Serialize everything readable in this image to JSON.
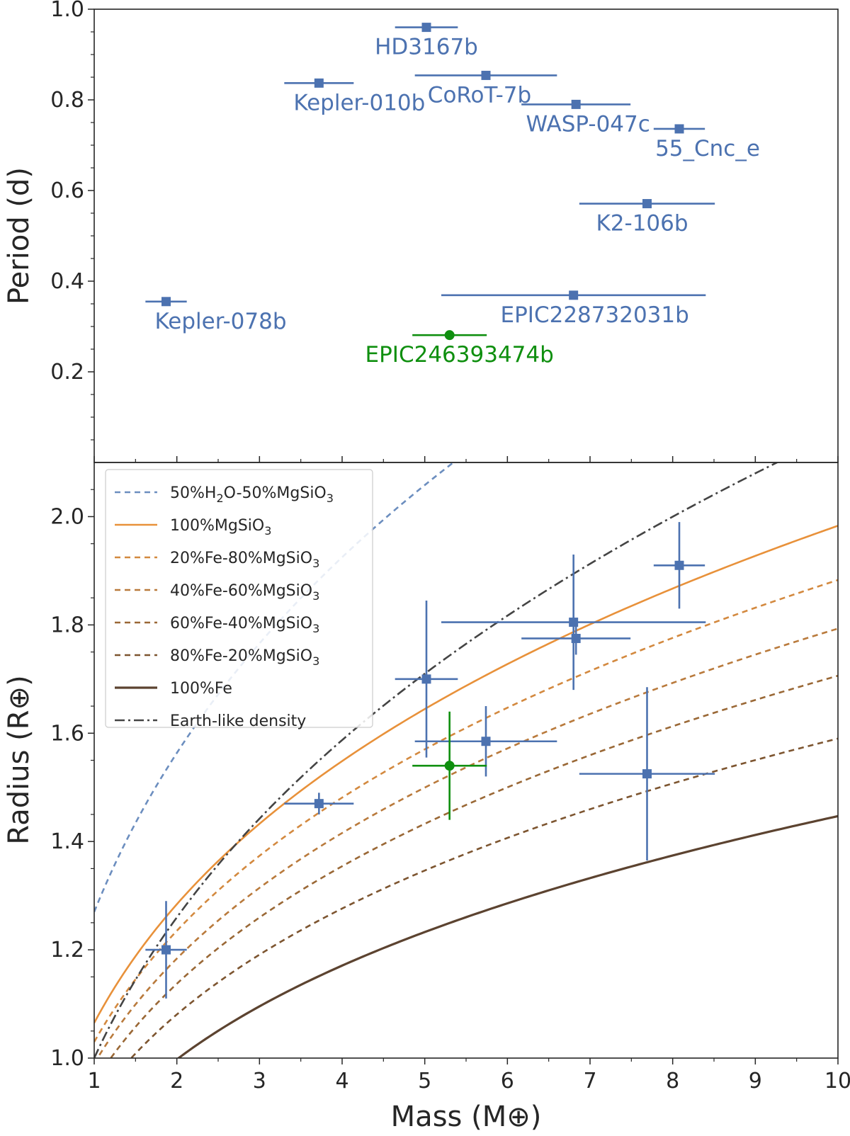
{
  "chart_data": [
    {
      "type": "scatter",
      "panel": "top",
      "ylabel": "Period (d)",
      "xlim": [
        1,
        10
      ],
      "ylim": [
        0,
        1.0
      ],
      "yticks": [
        0.2,
        0.4,
        0.6,
        0.8,
        1.0
      ],
      "ytick_labels": [
        "0.2",
        "0.4",
        "0.6",
        "0.8",
        "1.0"
      ],
      "points": [
        {
          "name": "HD3167b",
          "mass": 5.02,
          "mass_err": 0.38,
          "period": 0.96,
          "color": "#4c72b0",
          "marker": "square"
        },
        {
          "name": "Kepler-010b",
          "mass": 3.72,
          "mass_err": 0.42,
          "period": 0.837,
          "color": "#4c72b0",
          "marker": "square"
        },
        {
          "name": "CoRoT-7b",
          "mass": 5.74,
          "mass_err": 0.86,
          "period": 0.854,
          "color": "#4c72b0",
          "marker": "square"
        },
        {
          "name": "WASP-047c",
          "mass": 6.83,
          "mass_err": 0.66,
          "period": 0.79,
          "color": "#4c72b0",
          "marker": "square"
        },
        {
          "name": "55_Cnc_e",
          "mass": 8.08,
          "mass_err": 0.31,
          "period": 0.736,
          "color": "#4c72b0",
          "marker": "square"
        },
        {
          "name": "K2-106b",
          "mass": 7.69,
          "mass_err": 0.82,
          "period": 0.571,
          "color": "#4c72b0",
          "marker": "square"
        },
        {
          "name": "Kepler-078b",
          "mass": 1.87,
          "mass_err": 0.25,
          "period": 0.355,
          "color": "#4c72b0",
          "marker": "square"
        },
        {
          "name": "EPIC228732031b",
          "mass": 6.8,
          "mass_err": 1.6,
          "period": 0.369,
          "color": "#4c72b0",
          "marker": "square"
        },
        {
          "name": "EPIC246393474b",
          "mass": 5.3,
          "mass_err": 0.45,
          "period": 0.281,
          "color": "#0f8f0f",
          "marker": "circle"
        }
      ]
    },
    {
      "type": "line",
      "panel": "bottom",
      "xlabel": "Mass (M⊕)",
      "ylabel": "Radius (R⊕)",
      "xlim": [
        1,
        10
      ],
      "ylim": [
        1.0,
        2.1
      ],
      "xticks": [
        1,
        2,
        3,
        4,
        5,
        6,
        7,
        8,
        9,
        10
      ],
      "xtick_labels": [
        "1",
        "2",
        "3",
        "4",
        "5",
        "6",
        "7",
        "8",
        "9",
        "10"
      ],
      "yticks": [
        1.0,
        1.2,
        1.4,
        1.6,
        1.8,
        2.0
      ],
      "ytick_labels": [
        "1.0",
        "1.2",
        "1.4",
        "1.6",
        "1.8",
        "2.0"
      ],
      "series": [
        {
          "name": "50%H2O-50%MgSiO3",
          "label_parts": [
            "50%H",
            "2",
            "O-50%MgSiO",
            "3"
          ],
          "color": "#6c8ebf",
          "dash": "8,6",
          "r1": 1.27,
          "exp": 0.3
        },
        {
          "name": "100%MgSiO3",
          "label_parts": [
            "100%MgSiO",
            "3"
          ],
          "color": "#e8913a",
          "dash": "",
          "r1": 1.065,
          "exp": 0.27
        },
        {
          "name": "20%Fe-80%MgSiO3",
          "label_parts": [
            "20%Fe-80%MgSiO",
            "3"
          ],
          "color": "#d3893f",
          "dash": "8,6",
          "r1": 1.03,
          "exp": 0.262
        },
        {
          "name": "40%Fe-60%MgSiO3",
          "label_parts": [
            "40%Fe-60%MgSiO",
            "3"
          ],
          "color": "#b97a3c",
          "dash": "8,6",
          "r1": 0.99,
          "exp": 0.258
        },
        {
          "name": "60%Fe-40%MgSiO3",
          "label_parts": [
            "60%Fe-40%MgSiO",
            "3"
          ],
          "color": "#9a6836",
          "dash": "8,6",
          "r1": 0.955,
          "exp": 0.252
        },
        {
          "name": "80%Fe-20%MgSiO3",
          "label_parts": [
            "80%Fe-20%MgSiO",
            "3"
          ],
          "color": "#7d5530",
          "dash": "8,6",
          "r1": 0.915,
          "exp": 0.24
        },
        {
          "name": "100%Fe",
          "label_parts": [
            "100%Fe"
          ],
          "color": "#5c4330",
          "dash": "",
          "r1": 0.85,
          "exp": 0.231
        },
        {
          "name": "Earth-like density",
          "label_parts": [
            "Earth-like density"
          ],
          "color": "#444444",
          "dash": "14,5,3,5",
          "r1": 1.0,
          "exp": 0.3333
        }
      ],
      "points": [
        {
          "mass": 1.87,
          "mass_err": 0.25,
          "radius": 1.2,
          "radius_err": 0.09,
          "color": "#4c72b0",
          "marker": "square"
        },
        {
          "mass": 3.72,
          "mass_err": 0.42,
          "radius": 1.47,
          "radius_err": 0.02,
          "color": "#4c72b0",
          "marker": "square"
        },
        {
          "mass": 5.02,
          "mass_err": 0.38,
          "radius": 1.7,
          "radius_err": 0.145,
          "color": "#4c72b0",
          "marker": "square"
        },
        {
          "mass": 5.74,
          "mass_err": 0.86,
          "radius": 1.585,
          "radius_err": 0.065,
          "color": "#4c72b0",
          "marker": "square"
        },
        {
          "mass": 6.8,
          "mass_err": 1.6,
          "radius": 1.805,
          "radius_err": 0.125,
          "color": "#4c72b0",
          "marker": "square"
        },
        {
          "mass": 6.83,
          "mass_err": 0.66,
          "radius": 1.775,
          "radius_err": 0.03,
          "color": "#4c72b0",
          "marker": "square"
        },
        {
          "mass": 8.08,
          "mass_err": 0.31,
          "radius": 1.91,
          "radius_err": 0.08,
          "color": "#4c72b0",
          "marker": "square"
        },
        {
          "mass": 7.69,
          "mass_err": 0.82,
          "radius": 1.525,
          "radius_err": 0.16,
          "color": "#4c72b0",
          "marker": "square"
        },
        {
          "mass": 5.3,
          "mass_err": 0.45,
          "radius": 1.54,
          "radius_err": 0.1,
          "color": "#0f8f0f",
          "marker": "circle"
        }
      ]
    }
  ]
}
